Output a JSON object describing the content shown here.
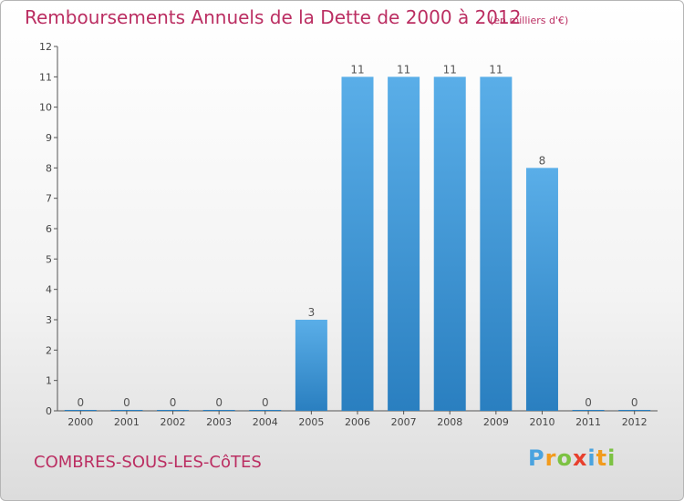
{
  "header": {
    "title": "Remboursements Annuels de la Dette de 2000 à 2012",
    "unit": "(en milliers d'€)"
  },
  "footer": {
    "commune": "COMBRES-SOUS-LES-CôTES",
    "logo": {
      "letters": [
        "P",
        "r",
        "o",
        "x",
        "i",
        "t",
        "i"
      ],
      "colors": [
        "#4aa3df",
        "#f29b1d",
        "#7cc242",
        "#e8402d",
        "#4aa3df",
        "#f29b1d",
        "#7cc242"
      ]
    }
  },
  "colors": {
    "bar_light": "#5aaee8",
    "bar_dark": "#2a7fc0",
    "axis": "#555555",
    "title": "#bb2e62"
  },
  "chart_data": {
    "type": "bar",
    "title": "Remboursements Annuels de la Dette de 2000 à 2012",
    "subtitle": "(en milliers d'€)",
    "categories": [
      "2000",
      "2001",
      "2002",
      "2003",
      "2004",
      "2005",
      "2006",
      "2007",
      "2008",
      "2009",
      "2010",
      "2011",
      "2012"
    ],
    "values": [
      0,
      0,
      0,
      0,
      0,
      3,
      11,
      11,
      11,
      11,
      8,
      0,
      0
    ],
    "ylim": [
      0,
      12
    ],
    "yticks": [
      0,
      1,
      2,
      3,
      4,
      5,
      6,
      7,
      8,
      9,
      10,
      11,
      12
    ],
    "grid": false,
    "legend": "none"
  }
}
